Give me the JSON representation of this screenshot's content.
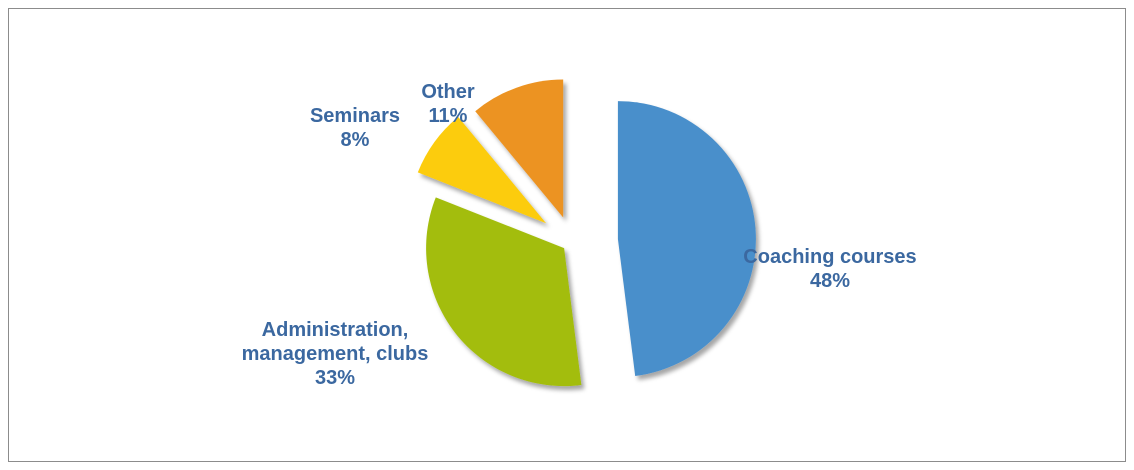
{
  "chart_data": {
    "type": "pie",
    "categories": [
      "Coaching courses",
      "Administration, management, clubs",
      "Seminars",
      "Other"
    ],
    "values": [
      48,
      33,
      8,
      11
    ],
    "value_labels": [
      "48%",
      "33%",
      "8%",
      "11%"
    ],
    "colors": [
      "#4a8fcb",
      "#a3bd0f",
      "#fccc0a",
      "#ec9322"
    ]
  }
}
